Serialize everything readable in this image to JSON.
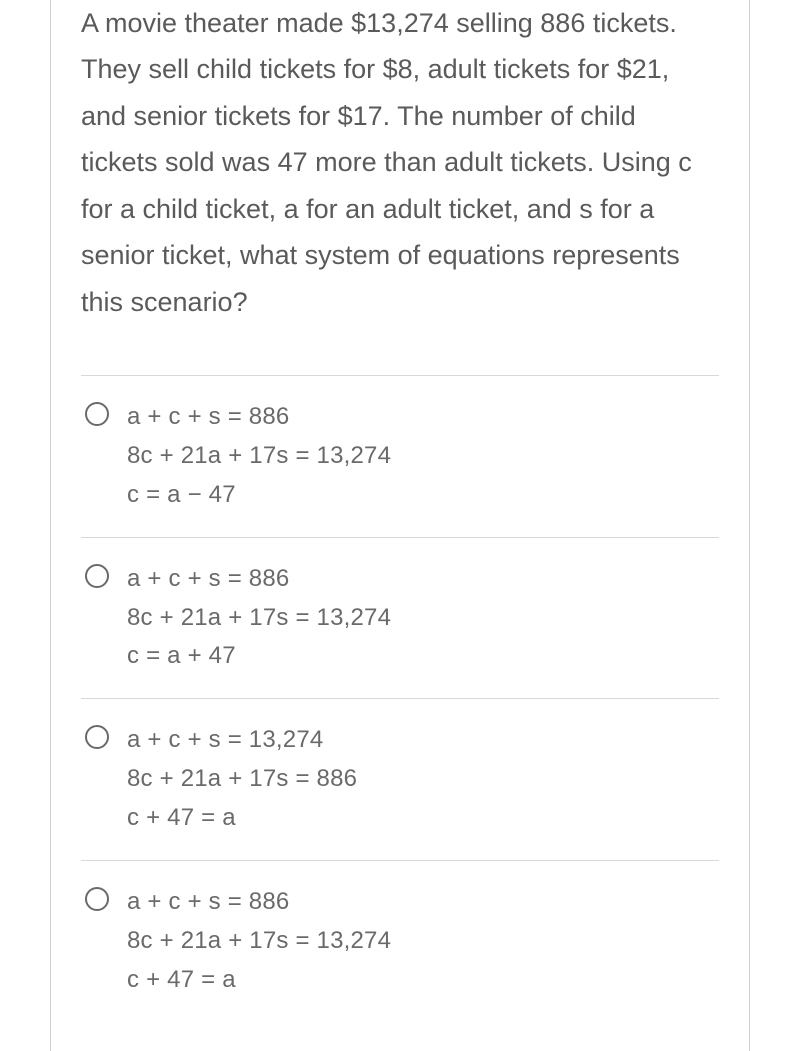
{
  "question": "A movie theater made $13,274 selling 886 tickets. They sell child tickets for $8, adult tickets for $21, and senior tickets for $17. The number of child tickets sold was 47 more than adult tickets. Using c for a child ticket, a for an adult ticket, and s for a senior ticket, what system of equations represents this scenario?",
  "options": [
    {
      "line1": "a + c + s = 886",
      "line2": "8c + 21a + 17s = 13,274",
      "line3": "c = a − 47"
    },
    {
      "line1": "a + c + s = 886",
      "line2": "8c + 21a + 17s = 13,274",
      "line3": "c = a + 47"
    },
    {
      "line1": "a + c + s = 13,274",
      "line2": "8c + 21a + 17s = 886",
      "line3": "c + 47 = a"
    },
    {
      "line1": "a + c + s = 886",
      "line2": "8c + 21a + 17s = 13,274",
      "line3": "c + 47 = a"
    }
  ],
  "colors": {
    "text": "#5a5a5a",
    "option_text": "#6a6a6a",
    "divider": "#d8d8d8",
    "frame_border": "#d0d0d0",
    "radio_border": "#6a6a6a",
    "background": "#ffffff"
  },
  "typography": {
    "question_fontsize": 27,
    "option_fontsize": 24,
    "question_lineheight": 1.72,
    "option_lineheight": 1.62
  }
}
